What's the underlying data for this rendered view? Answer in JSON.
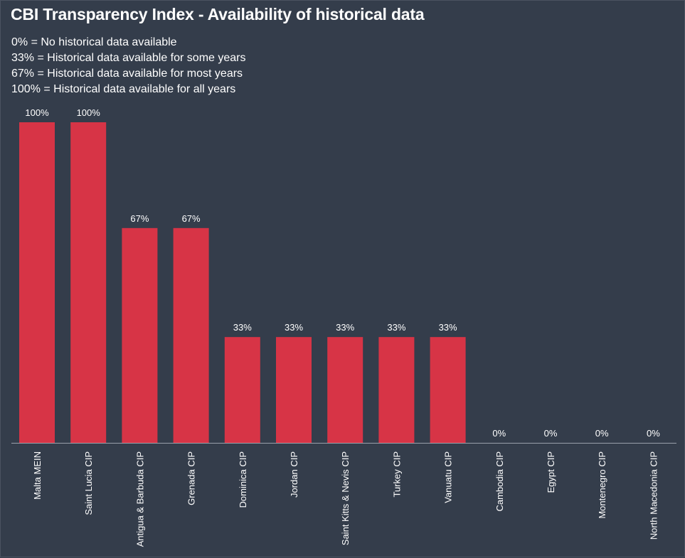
{
  "title": "CBI Transparency Index - Availability of historical data",
  "legend_lines": [
    "0% = No historical data available",
    "33% = Historical data available for some years",
    "67% = Historical data available for most years",
    "100% = Historical data available for all years"
  ],
  "colors": {
    "background": "#343d4b",
    "bar": "#d73446",
    "axis": "#9aa1ab",
    "text": "#ffffff"
  },
  "chart_data": {
    "type": "bar",
    "title": "CBI Transparency Index - Availability of historical data",
    "categories": [
      "Malta MEIN",
      "Saint Lucia CIP",
      "Antigua & Barbuda CIP",
      "Grenada CIP",
      "Dominica CIP",
      "Jordan CIP",
      "Saint Kitts & Nevis CIP",
      "Turkey CIP",
      "Vanuatu CIP",
      "Cambodia CIP",
      "Egypt CIP",
      "Montenegro CIP",
      "North Macedonia CIP"
    ],
    "values": [
      100,
      100,
      67,
      67,
      33,
      33,
      33,
      33,
      33,
      0,
      0,
      0,
      0
    ],
    "data_labels": [
      "100%",
      "100%",
      "67%",
      "67%",
      "33%",
      "33%",
      "33%",
      "33%",
      "33%",
      "0%",
      "0%",
      "0%",
      "0%"
    ],
    "ylim": [
      0,
      100
    ],
    "grid": false,
    "xlabel": "",
    "ylabel": ""
  }
}
